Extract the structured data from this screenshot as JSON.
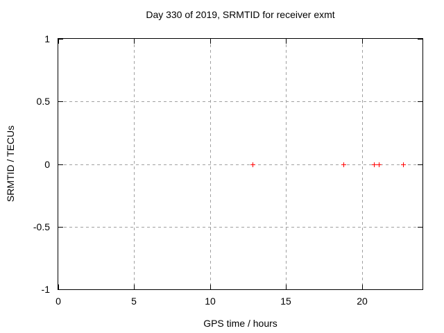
{
  "chart_data": {
    "type": "scatter",
    "title": "Day 330 of 2019, SRMTID for receiver exmt",
    "xlabel": "GPS time / hours",
    "ylabel": "SRMTID / TECUs",
    "xlim": [
      0,
      24
    ],
    "ylim": [
      -1,
      1
    ],
    "xticks": [
      0,
      5,
      10,
      15,
      20
    ],
    "xtick_labels": [
      "0",
      "5",
      "10",
      "15",
      "20"
    ],
    "yticks": [
      -1,
      -0.5,
      0,
      0.5,
      1
    ],
    "ytick_labels": [
      "-1",
      "-0.5",
      "0",
      "0.5",
      "1"
    ],
    "grid": true,
    "legend": "none",
    "series": [
      {
        "name": "SRMTID",
        "marker": "plus",
        "color": "#ff0000",
        "points": [
          {
            "x": 12.8,
            "y": 0
          },
          {
            "x": 18.8,
            "y": 0
          },
          {
            "x": 20.8,
            "y": 0
          },
          {
            "x": 21.1,
            "y": 0
          },
          {
            "x": 22.7,
            "y": 0
          }
        ]
      }
    ],
    "colors": {
      "background": "#ffffff",
      "axis": "#000000",
      "grid": "#a0a0a0",
      "marker": "#ff0000"
    }
  }
}
